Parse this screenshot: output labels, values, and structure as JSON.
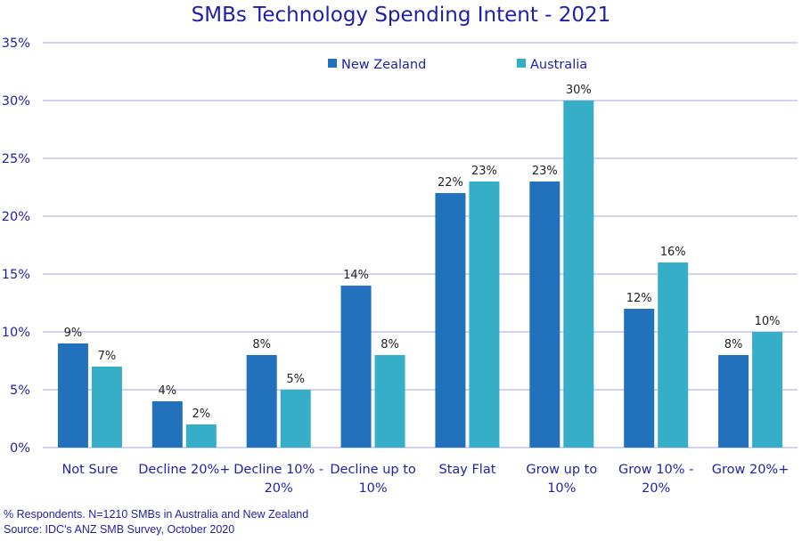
{
  "chart_data": {
    "type": "bar",
    "title": "SMBs Technology Spending Intent - 2021",
    "categories": [
      [
        "Not Sure"
      ],
      [
        "Decline 20%+"
      ],
      [
        "Decline 10% -",
        "20%"
      ],
      [
        "Decline up to",
        "10%"
      ],
      [
        "Stay Flat"
      ],
      [
        "Grow up to",
        "10%"
      ],
      [
        "Grow 10% -",
        "20%"
      ],
      [
        "Grow 20%+"
      ]
    ],
    "series": [
      {
        "name": "New Zealand",
        "color": "#2271bd",
        "values": [
          9,
          4,
          8,
          14,
          22,
          23,
          12,
          8
        ]
      },
      {
        "name": "Australia",
        "color": "#36aec8",
        "values": [
          7,
          2,
          5,
          8,
          23,
          30,
          16,
          10
        ]
      }
    ],
    "ylim": [
      0,
      35
    ],
    "yticks": [
      0,
      5,
      10,
      15,
      20,
      25,
      30,
      35
    ],
    "tick_suffix": "%",
    "label_suffix": "%",
    "legend_position": "top-right",
    "gridline_color": "#b8b8ee",
    "xlabel": "",
    "ylabel": ""
  },
  "footnotes": {
    "line1": "% Respondents. N=1210 SMBs in Australia and New Zealand",
    "line2": "Source: IDC's ANZ SMB Survey, October 2020"
  }
}
